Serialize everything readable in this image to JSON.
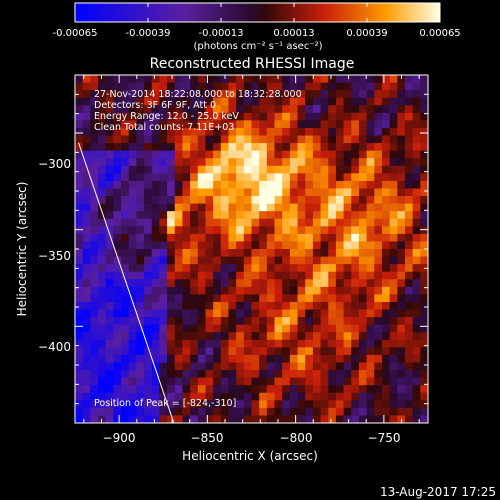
{
  "colorbar": {
    "tick_labels": [
      "-0.00065",
      "-0.00039",
      "-0.00013",
      "0.00013",
      "0.00039",
      "0.00065"
    ],
    "units_label": "(photons cm⁻² s⁻¹ asec⁻²)",
    "range": [
      -0.00065,
      0.00065
    ]
  },
  "plot": {
    "title": "Reconstructed RHESSI Image",
    "info_lines": [
      "27-Nov-2014 18:22:08.000 to 18:32:28.000",
      "Detectors: 3F 6F 9F, Att 0",
      "Energy Range: 12.0 - 25.0 keV",
      "Clean     Total counts: 7.11E+03"
    ],
    "peak_label": "Position of Peak = [-824,-310]",
    "x_axis": {
      "label": "Heliocentric X (arcsec)",
      "ticks": [
        -900,
        -850,
        -800,
        -750
      ],
      "tick_labels": [
        "−900",
        "−850",
        "−800",
        "−750"
      ],
      "range": [
        -925,
        -725
      ]
    },
    "y_axis": {
      "label": "Heliocentric Y (arcsec)",
      "ticks": [
        -300,
        -350,
        -400
      ],
      "tick_labels": [
        "−300",
        "−350",
        "−400"
      ],
      "range": [
        -450,
        -270
      ]
    },
    "limb_line": {
      "x": [
        -923,
        -869
      ],
      "y": [
        -305,
        -450
      ]
    }
  },
  "timestamp": "13-Aug-2017 17:25"
}
